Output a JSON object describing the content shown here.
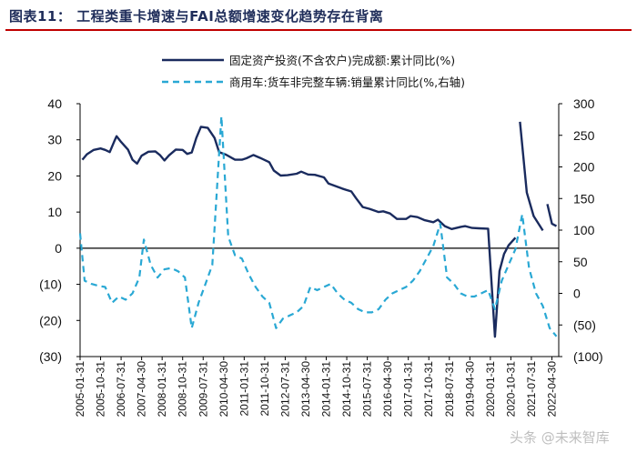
{
  "title": "图表11： 工程类重卡增速与FAI总额增速变化趋势存在背离",
  "watermark": "头条 @未来智库",
  "colors": {
    "fai": "#1a2b5e",
    "trucks": "#29a8d4",
    "rule": "#c00000",
    "axis": "#000000"
  },
  "chart_data": {
    "type": "line",
    "title": "工程类重卡增速与FAI总额增速变化趋势存在背离",
    "grid": false,
    "legend_position": "top-right",
    "y_left": {
      "ylim": [
        -30,
        40
      ],
      "ticks": [
        40,
        30,
        20,
        10,
        0,
        -10,
        -20,
        -30
      ],
      "tick_labels": [
        "40",
        "30",
        "20",
        "10",
        "0",
        "(10)",
        "(20)",
        "(30)"
      ]
    },
    "y_right": {
      "ylim": [
        -100,
        300
      ],
      "ticks": [
        300,
        250,
        200,
        150,
        100,
        50,
        0,
        -50,
        -100
      ],
      "tick_labels": [
        "300",
        "250",
        "200",
        "150",
        "100",
        "50",
        "0",
        "(50)",
        "(100)"
      ]
    },
    "x_tick_labels": [
      "2005-01-31",
      "2005-10-31",
      "2006-07-31",
      "2007-04-30",
      "2008-01-31",
      "2008-10-31",
      "2009-07-31",
      "2010-04-30",
      "2011-01-31",
      "2011-10-31",
      "2012-07-31",
      "2013-04-30",
      "2014-01-31",
      "2014-10-31",
      "2015-07-31",
      "2016-04-30",
      "2017-01-31",
      "2017-10-31",
      "2018-07-31",
      "2019-04-30",
      "2020-01-31",
      "2020-10-31",
      "2021-07-31",
      "2022-04-30"
    ],
    "series": [
      {
        "name": "固定资产投资(不含农户)完成额:累计同比(%)",
        "axis": "left",
        "style": "solid",
        "points": [
          [
            "2005-02",
            24.5
          ],
          [
            "2005-04",
            26.0
          ],
          [
            "2005-07",
            27.2
          ],
          [
            "2005-10",
            27.6
          ],
          [
            "2005-12",
            27.2
          ],
          [
            "2006-02",
            26.6
          ],
          [
            "2006-04",
            29.6
          ],
          [
            "2006-05",
            31.0
          ],
          [
            "2006-07",
            29.4
          ],
          [
            "2006-10",
            27.3
          ],
          [
            "2006-12",
            24.5
          ],
          [
            "2007-02",
            23.4
          ],
          [
            "2007-04",
            25.6
          ],
          [
            "2007-07",
            26.7
          ],
          [
            "2007-10",
            26.8
          ],
          [
            "2007-12",
            25.8
          ],
          [
            "2008-02",
            24.3
          ],
          [
            "2008-04",
            25.7
          ],
          [
            "2008-07",
            27.3
          ],
          [
            "2008-10",
            27.2
          ],
          [
            "2008-12",
            26.1
          ],
          [
            "2009-02",
            26.5
          ],
          [
            "2009-04",
            30.5
          ],
          [
            "2009-06",
            33.6
          ],
          [
            "2009-09",
            33.3
          ],
          [
            "2009-12",
            30.5
          ],
          [
            "2010-02",
            26.6
          ],
          [
            "2010-05",
            25.9
          ],
          [
            "2010-09",
            24.5
          ],
          [
            "2010-12",
            24.5
          ],
          [
            "2011-02",
            24.9
          ],
          [
            "2011-05",
            25.8
          ],
          [
            "2011-08",
            25.0
          ],
          [
            "2011-12",
            23.8
          ],
          [
            "2012-02",
            21.5
          ],
          [
            "2012-05",
            20.1
          ],
          [
            "2012-08",
            20.2
          ],
          [
            "2012-12",
            20.6
          ],
          [
            "2013-02",
            21.2
          ],
          [
            "2013-05",
            20.4
          ],
          [
            "2013-08",
            20.3
          ],
          [
            "2013-12",
            19.6
          ],
          [
            "2014-02",
            17.9
          ],
          [
            "2014-05",
            17.2
          ],
          [
            "2014-08",
            16.5
          ],
          [
            "2014-12",
            15.7
          ],
          [
            "2015-02",
            13.9
          ],
          [
            "2015-05",
            11.4
          ],
          [
            "2015-08",
            10.9
          ],
          [
            "2015-12",
            10.0
          ],
          [
            "2016-02",
            10.2
          ],
          [
            "2016-05",
            9.6
          ],
          [
            "2016-08",
            8.1
          ],
          [
            "2016-12",
            8.1
          ],
          [
            "2017-02",
            8.9
          ],
          [
            "2017-05",
            8.6
          ],
          [
            "2017-08",
            7.8
          ],
          [
            "2017-12",
            7.2
          ],
          [
            "2018-02",
            7.9
          ],
          [
            "2018-05",
            6.1
          ],
          [
            "2018-08",
            5.3
          ],
          [
            "2018-12",
            5.9
          ],
          [
            "2019-02",
            6.1
          ],
          [
            "2019-05",
            5.6
          ],
          [
            "2019-08",
            5.5
          ],
          [
            "2019-12",
            5.4
          ],
          [
            "2020-03",
            -24.5
          ],
          [
            "2020-05",
            -6.3
          ],
          [
            "2020-07",
            -1.6
          ],
          [
            "2020-09",
            0.8
          ],
          [
            "2020-12",
            2.9
          ],
          [
            null,
            null
          ],
          [
            "2021-02",
            35.0
          ],
          [
            "2021-05",
            15.4
          ],
          [
            "2021-08",
            8.9
          ],
          [
            "2021-12",
            4.9
          ],
          [
            null,
            null
          ],
          [
            "2022-02",
            12.2
          ],
          [
            "2022-04",
            6.8
          ],
          [
            "2022-06",
            6.1
          ]
        ]
      },
      {
        "name": "商用车:货车非完整车辆:销量累计同比(%,右轴)",
        "axis": "right",
        "style": "dashed",
        "points": [
          [
            "2005-01",
            95
          ],
          [
            "2005-03",
            20
          ],
          [
            "2005-06",
            15
          ],
          [
            "2005-09",
            12
          ],
          [
            "2005-12",
            10
          ],
          [
            "2006-03",
            -15
          ],
          [
            "2006-06",
            -5
          ],
          [
            "2006-09",
            -10
          ],
          [
            "2006-12",
            0
          ],
          [
            "2007-03",
            25
          ],
          [
            "2007-05",
            85
          ],
          [
            "2007-08",
            45
          ],
          [
            "2007-11",
            25
          ],
          [
            "2008-02",
            38
          ],
          [
            "2008-05",
            40
          ],
          [
            "2008-08",
            35
          ],
          [
            "2008-11",
            25
          ],
          [
            "2009-02",
            -55
          ],
          [
            "2009-05",
            -15
          ],
          [
            "2009-08",
            15
          ],
          [
            "2009-11",
            45
          ],
          [
            "2010-03",
            280
          ],
          [
            "2010-06",
            90
          ],
          [
            "2010-09",
            60
          ],
          [
            "2010-12",
            55
          ],
          [
            "2011-03",
            30
          ],
          [
            "2011-06",
            10
          ],
          [
            "2011-09",
            -5
          ],
          [
            "2011-12",
            -15
          ],
          [
            "2012-03",
            -55
          ],
          [
            "2012-06",
            -40
          ],
          [
            "2012-09",
            -35
          ],
          [
            "2012-12",
            -30
          ],
          [
            "2013-03",
            -20
          ],
          [
            "2013-06",
            10
          ],
          [
            "2013-09",
            5
          ],
          [
            "2013-12",
            10
          ],
          [
            "2014-03",
            15
          ],
          [
            "2014-06",
            0
          ],
          [
            "2014-09",
            -10
          ],
          [
            "2014-12",
            -15
          ],
          [
            "2015-03",
            -25
          ],
          [
            "2015-06",
            -30
          ],
          [
            "2015-09",
            -30
          ],
          [
            "2015-12",
            -25
          ],
          [
            "2016-03",
            -10
          ],
          [
            "2016-06",
            0
          ],
          [
            "2016-09",
            5
          ],
          [
            "2016-12",
            10
          ],
          [
            "2017-03",
            20
          ],
          [
            "2017-06",
            35
          ],
          [
            "2017-09",
            55
          ],
          [
            "2017-12",
            75
          ],
          [
            "2018-03",
            110
          ],
          [
            "2018-06",
            25
          ],
          [
            "2018-09",
            15
          ],
          [
            "2018-12",
            0
          ],
          [
            "2019-03",
            -5
          ],
          [
            "2019-06",
            -5
          ],
          [
            "2019-09",
            0
          ],
          [
            "2019-12",
            5
          ],
          [
            "2020-03",
            -25
          ],
          [
            "2020-06",
            20
          ],
          [
            "2020-09",
            45
          ],
          [
            "2020-12",
            70
          ],
          [
            "2021-03",
            125
          ],
          [
            "2021-06",
            40
          ],
          [
            "2021-09",
            0
          ],
          [
            "2021-12",
            -20
          ],
          [
            "2022-03",
            -55
          ],
          [
            "2022-06",
            -68
          ]
        ]
      }
    ]
  }
}
